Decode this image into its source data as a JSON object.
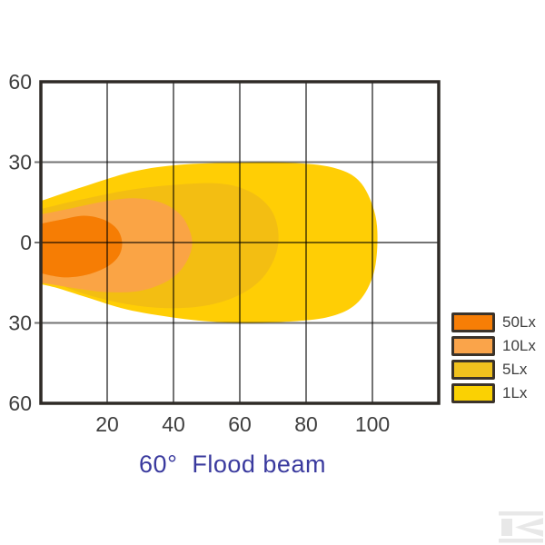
{
  "title": {
    "text": "60°  Flood beam",
    "color": "#3a3a9e"
  },
  "legend": {
    "items": [
      {
        "label": "50Lx",
        "color": "#f77e06"
      },
      {
        "label": "10Lx",
        "color": "#faa44a"
      },
      {
        "label": "5Lx",
        "color": "#f0c11e"
      },
      {
        "label": "1Lx",
        "color": "#fad103"
      }
    ],
    "swatch_border_color": "#3b332a"
  },
  "chart_data": {
    "type": "area",
    "title": "60° Flood beam",
    "description": "Isolux contour diagram of flood beam light distribution; nested filled regions show illuminance levels (lux), beam emitted from left edge at 0.",
    "x_axis": {
      "range": [
        0,
        120
      ],
      "tick_values": [
        20,
        40,
        60,
        80,
        100
      ],
      "tick_labels": [
        "20",
        "40",
        "60",
        "80",
        "100"
      ],
      "gridlines": [
        20,
        40,
        60,
        80,
        100
      ]
    },
    "y_axis": {
      "range": [
        -60,
        60
      ],
      "tick_values": [
        60,
        30,
        0,
        -30,
        -60
      ],
      "tick_labels": [
        "60",
        "30",
        "0",
        "30",
        "60"
      ],
      "gridlines": [
        30,
        0,
        -30
      ]
    },
    "grid_on": true,
    "legend_position": "right-outside-bottom",
    "series": [
      {
        "name": "1Lx",
        "color": "#ffce05",
        "max_reach_x": 101.5,
        "points": [
          [
            0,
            15.5
          ],
          [
            12,
            20.5
          ],
          [
            28,
            26.5
          ],
          [
            42,
            29
          ],
          [
            58,
            29.8
          ],
          [
            75,
            29.8
          ],
          [
            88,
            28
          ],
          [
            96,
            23
          ],
          [
            100.5,
            12
          ],
          [
            101.5,
            0
          ],
          [
            100,
            -13
          ],
          [
            95,
            -23
          ],
          [
            86,
            -28
          ],
          [
            70,
            -29.8
          ],
          [
            55,
            -29.8
          ],
          [
            40,
            -28
          ],
          [
            26,
            -25
          ],
          [
            14,
            -20.5
          ],
          [
            5,
            -17
          ],
          [
            0,
            -15.5
          ]
        ]
      },
      {
        "name": "5Lx",
        "color": "#f3be12",
        "max_reach_x": 71.5,
        "points": [
          [
            0,
            12.5
          ],
          [
            12,
            16
          ],
          [
            26,
            19.5
          ],
          [
            40,
            21.5
          ],
          [
            54,
            22
          ],
          [
            63,
            19
          ],
          [
            69,
            13
          ],
          [
            71.5,
            5
          ],
          [
            71,
            -4
          ],
          [
            67,
            -13
          ],
          [
            60,
            -19.5
          ],
          [
            50,
            -23.5
          ],
          [
            38,
            -24.5
          ],
          [
            26,
            -23
          ],
          [
            14,
            -19.5
          ],
          [
            5,
            -15.5
          ],
          [
            0,
            -13.5
          ]
        ]
      },
      {
        "name": "10Lx",
        "color": "#faa445",
        "max_reach_x": 45.5,
        "points": [
          [
            0,
            10.5
          ],
          [
            10,
            13
          ],
          [
            20,
            15.5
          ],
          [
            28,
            16.5
          ],
          [
            36,
            15
          ],
          [
            42,
            10.5
          ],
          [
            45,
            4
          ],
          [
            45.5,
            -2
          ],
          [
            43,
            -9
          ],
          [
            38,
            -14.5
          ],
          [
            30,
            -18
          ],
          [
            20,
            -18.5
          ],
          [
            10,
            -17
          ],
          [
            0,
            -15
          ]
        ]
      },
      {
        "name": "50Lx",
        "color": "#f67d04",
        "max_reach_x": 24.5,
        "points": [
          [
            0,
            7
          ],
          [
            6,
            8.5
          ],
          [
            13,
            10
          ],
          [
            19,
            8.5
          ],
          [
            23,
            5
          ],
          [
            24.5,
            0
          ],
          [
            23.5,
            -5
          ],
          [
            20,
            -9
          ],
          [
            14,
            -12
          ],
          [
            7,
            -13
          ],
          [
            0,
            -11.5
          ]
        ]
      }
    ],
    "frame_color": "#2e2a26",
    "grid_color": "rgba(0,0,0,0.55)",
    "tick_label_color": "#3e3e3e"
  },
  "watermark": {
    "name": "kramp-logo",
    "color": "#e8e8e8"
  }
}
